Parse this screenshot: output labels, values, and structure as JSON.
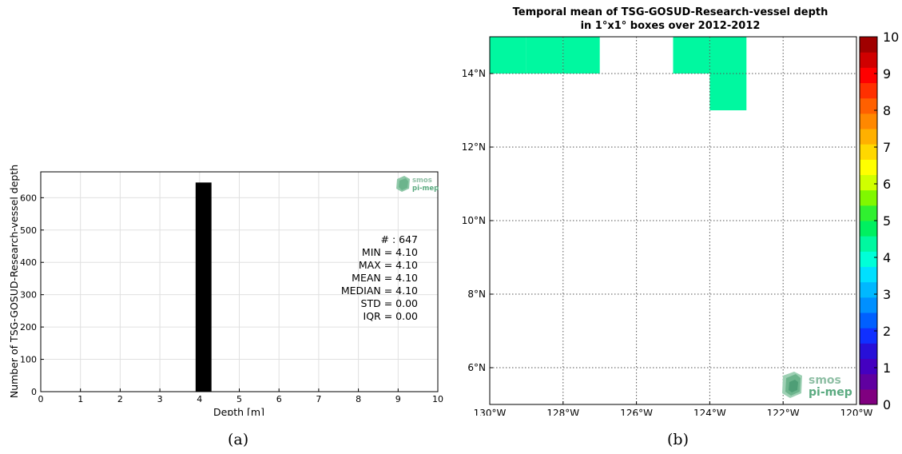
{
  "captions": {
    "a": "(a)",
    "b": "(b)"
  },
  "colors": {
    "bar": "#000000",
    "grid_light": "#e0e0e0",
    "cell": "#00f8a0",
    "logo_green": "#5aaa80"
  },
  "logo": {
    "line1": "smos",
    "line2": "pi-mep"
  },
  "chart_data": [
    {
      "type": "bar",
      "xlabel": "Depth [m]",
      "ylabel": "Number of TSG-GOSUD-Research-vessel depth",
      "xlim": [
        0,
        10
      ],
      "ylim": [
        0,
        680
      ],
      "xticks": [
        0,
        1,
        2,
        3,
        4,
        5,
        6,
        7,
        8,
        9,
        10
      ],
      "yticks": [
        0,
        100,
        200,
        300,
        400,
        500,
        600
      ],
      "bin_width": 0.4,
      "bars": [
        {
          "x": 4.1,
          "value": 647
        }
      ],
      "grid": true,
      "stats": [
        "# : 647",
        "MIN = 4.10",
        "MAX =  4.10",
        "MEAN = 4.10",
        "MEDIAN = 4.10",
        "STD = 0.00",
        "IQR = 0.00"
      ]
    },
    {
      "type": "heatmap",
      "title_line1": "Temporal mean of TSG-GOSUD-Research-vessel depth",
      "title_line2": "in 1°x1° boxes over 2012-2012",
      "xlim": [
        -130,
        -120
      ],
      "ylim": [
        5,
        15
      ],
      "xticks": [
        {
          "value": -130,
          "label": "130°W"
        },
        {
          "value": -128,
          "label": "128°W"
        },
        {
          "value": -126,
          "label": "126°W"
        },
        {
          "value": -124,
          "label": "124°W"
        },
        {
          "value": -122,
          "label": "122°W"
        },
        {
          "value": -120,
          "label": "120°W"
        }
      ],
      "yticks": [
        {
          "value": 6,
          "label": "6°N"
        },
        {
          "value": 8,
          "label": "8°N"
        },
        {
          "value": 10,
          "label": "10°N"
        },
        {
          "value": 12,
          "label": "12°N"
        },
        {
          "value": 14,
          "label": "14°N"
        }
      ],
      "cells": [
        {
          "lon": -130,
          "lat": 14,
          "value": 4.1
        },
        {
          "lon": -129,
          "lat": 14,
          "value": 4.1
        },
        {
          "lon": -128,
          "lat": 14,
          "value": 4.1
        },
        {
          "lon": -125,
          "lat": 14,
          "value": 4.1
        },
        {
          "lon": -124,
          "lat": 14,
          "value": 4.1
        },
        {
          "lon": -124,
          "lat": 13,
          "value": 4.1
        }
      ],
      "grid": "dotted",
      "colorbar": {
        "min": 0,
        "max": 10,
        "ticks": [
          "0",
          "1",
          "2",
          "3",
          "4",
          "5",
          "6",
          "7",
          "8",
          "9",
          "10"
        ],
        "colors": [
          "#800080",
          "#6000a0",
          "#4400c0",
          "#2810d8",
          "#1030ff",
          "#0060ff",
          "#0090ff",
          "#00b8ff",
          "#00e0ff",
          "#00ffd8",
          "#00f8a0",
          "#00f060",
          "#30f030",
          "#80f800",
          "#d0ff00",
          "#ffff00",
          "#ffd800",
          "#ffb000",
          "#ff8800",
          "#ff6000",
          "#ff3000",
          "#ff0000",
          "#d00000",
          "#a00000"
        ]
      }
    }
  ]
}
